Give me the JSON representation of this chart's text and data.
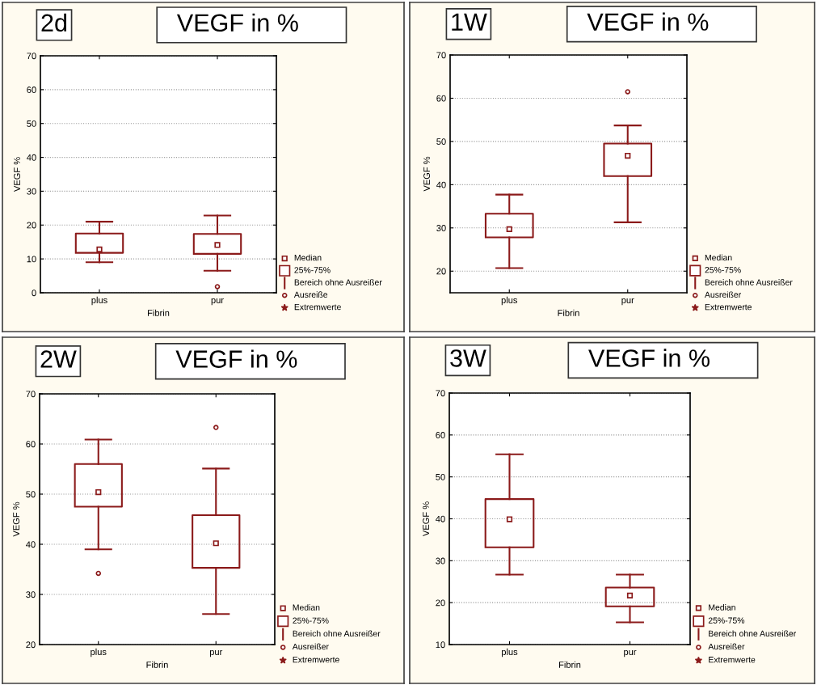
{
  "chart_data": [
    {
      "type": "box",
      "title": "2d",
      "subtitle": "VEGF in %",
      "xlabel": "Fibrin",
      "ylabel": "VEGF %",
      "categories": [
        "plus",
        "pur"
      ],
      "series": [
        {
          "color": "#8b1a1a",
          "boxes": [
            {
              "low": 9.0,
              "q1": 11.8,
              "median": 12.8,
              "q3": 17.5,
              "high": 21.0
            },
            {
              "low": 6.5,
              "q1": 11.5,
              "median": 14.1,
              "q3": 17.4,
              "high": 22.8,
              "outliers": [
                1.8
              ]
            }
          ]
        }
      ],
      "ylim": [
        0,
        70
      ],
      "yticks": [
        0,
        10,
        20,
        30,
        40,
        50,
        60,
        70
      ],
      "grid": "y",
      "annotations": [
        "Median",
        "25%-75%",
        "Bereich ohne Ausreißer",
        "Ausreiße",
        "Extremwerte"
      ]
    },
    {
      "type": "box",
      "title": "1W",
      "subtitle": "VEGF in %",
      "xlabel": "Fibrin",
      "ylabel": "VEGF %",
      "categories": [
        "plus",
        "pur"
      ],
      "series": [
        {
          "color": "#8b1a1a",
          "boxes": [
            {
              "low": 20.7,
              "q1": 27.8,
              "median": 29.7,
              "q3": 33.3,
              "high": 37.7
            },
            {
              "low": 31.3,
              "q1": 42.0,
              "median": 46.7,
              "q3": 49.5,
              "high": 53.7,
              "outliers": [
                61.5
              ]
            }
          ]
        }
      ],
      "ylim": [
        15,
        70
      ],
      "yticks": [
        20,
        30,
        40,
        50,
        60,
        70
      ],
      "grid": "y",
      "annotations": [
        "Median",
        "25%-75%",
        "Bereich ohne Ausreißer",
        "Ausreißer",
        "Extremwerte"
      ]
    },
    {
      "type": "box",
      "title": "2W",
      "subtitle": "VEGF in %",
      "xlabel": "Fibrin",
      "ylabel": "VEGF %",
      "categories": [
        "plus",
        "pur"
      ],
      "series": [
        {
          "color": "#8b1a1a",
          "boxes": [
            {
              "low": 39.0,
              "q1": 47.5,
              "median": 50.4,
              "q3": 56.0,
              "high": 60.9,
              "outliers": [
                34.2
              ]
            },
            {
              "low": 26.1,
              "q1": 35.3,
              "median": 40.2,
              "q3": 45.8,
              "high": 55.1,
              "outliers": [
                63.3
              ]
            }
          ]
        }
      ],
      "ylim": [
        20,
        70
      ],
      "yticks": [
        20,
        30,
        40,
        50,
        60,
        70
      ],
      "grid": "y",
      "annotations": [
        "Median",
        "25%-75%",
        "Bereich ohne Ausreißer",
        "Ausreißer",
        "Extremwerte"
      ]
    },
    {
      "type": "box",
      "title": "3W",
      "subtitle": "VEGF in %",
      "xlabel": "Fibrin",
      "ylabel": "VEGF %",
      "categories": [
        "plus",
        "pur"
      ],
      "series": [
        {
          "color": "#8b1a1a",
          "boxes": [
            {
              "low": 26.7,
              "q1": 33.2,
              "median": 39.9,
              "q3": 44.7,
              "high": 55.4
            },
            {
              "low": 15.3,
              "q1": 19.1,
              "median": 21.7,
              "q3": 23.6,
              "high": 26.7
            }
          ]
        }
      ],
      "ylim": [
        10,
        70
      ],
      "yticks": [
        10,
        20,
        30,
        40,
        50,
        60,
        70
      ],
      "grid": "y",
      "annotations": [
        "Median",
        "25%-75%",
        "Bereich ohne Ausreißer",
        "Ausreißer",
        "Extremwerte"
      ]
    }
  ]
}
